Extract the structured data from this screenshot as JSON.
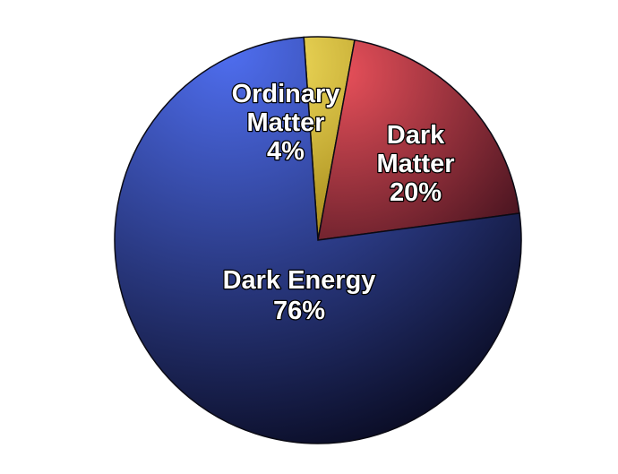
{
  "chart_data": {
    "type": "pie",
    "title": "",
    "start_angle_deg": 4,
    "slices": [
      {
        "key": "ordinary",
        "label_lines": [
          "Ordinary",
          "Matter",
          "4%"
        ],
        "value": 4,
        "color_light": "#f4df5e",
        "color_dark": "#9a7d10"
      },
      {
        "key": "dark_matter",
        "label_lines": [
          "Dark",
          "Matter",
          "20%"
        ],
        "value": 20,
        "color_light": "#e8505a",
        "color_dark": "#2e0a16"
      },
      {
        "key": "dark_energy",
        "label_lines": [
          "Dark Energy",
          "76%"
        ],
        "value": 76,
        "color_light": "#4f6ef0",
        "color_dark": "#0a0c24"
      }
    ]
  }
}
